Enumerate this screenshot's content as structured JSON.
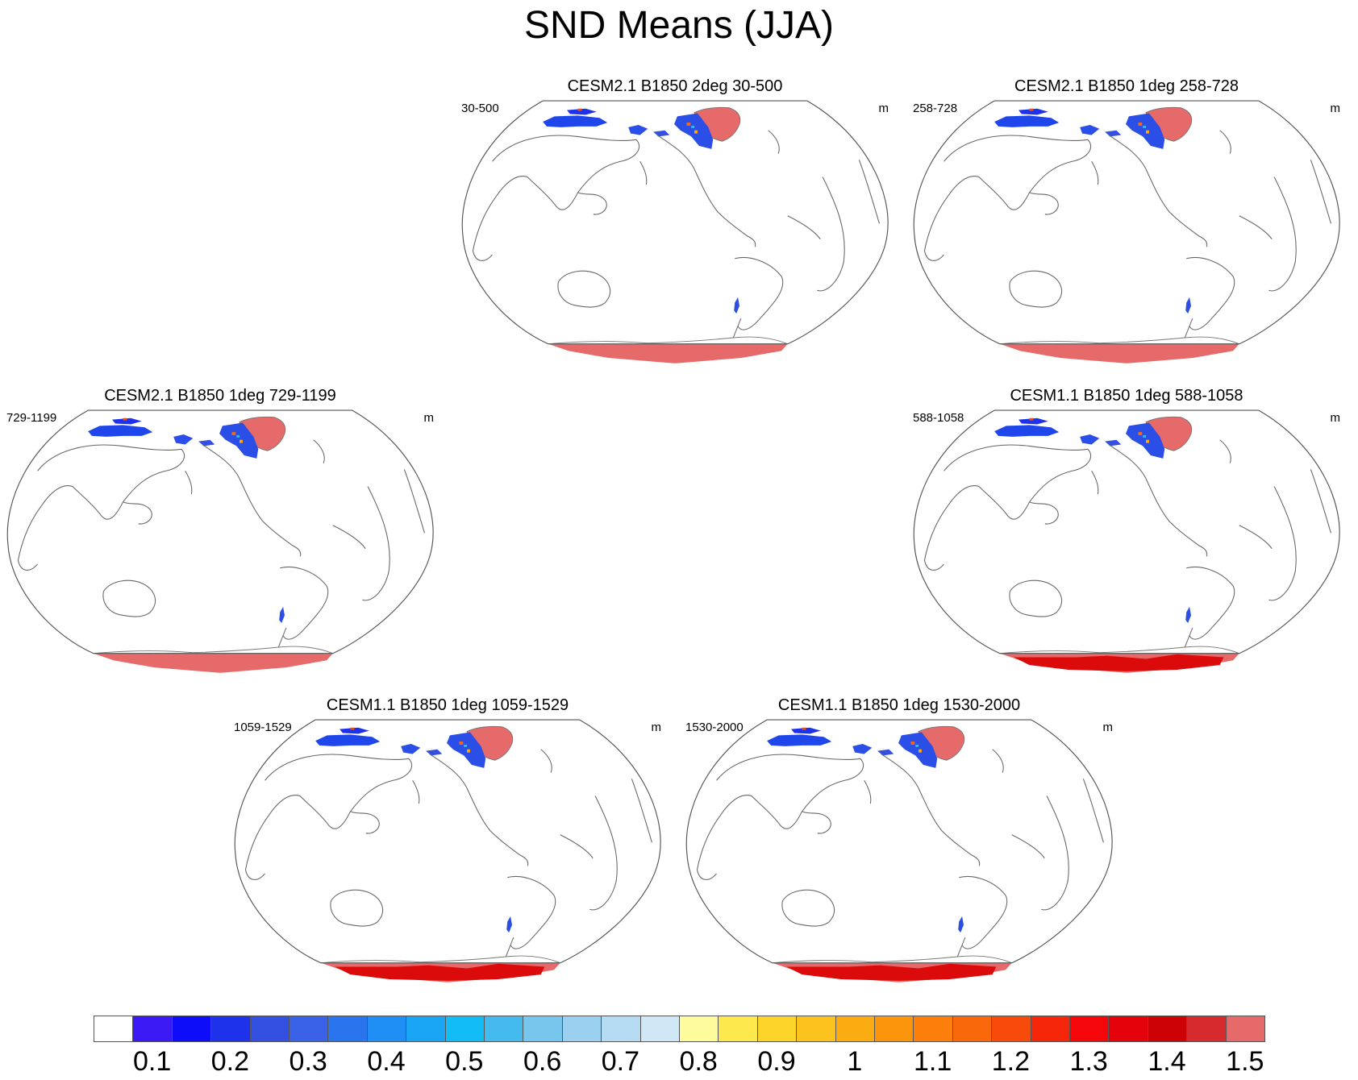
{
  "title": "SND Means (JJA)",
  "panels": [
    {
      "title": "CESM2.1 B1850 2deg 30-500",
      "left_string": "30-500",
      "units": "m",
      "antarctic_core": false
    },
    {
      "title": "CESM2.1 B1850 1deg 258-728",
      "left_string": "258-728",
      "units": "m",
      "antarctic_core": false
    },
    {
      "title": "CESM2.1 B1850 1deg 729-1199",
      "left_string": "729-1199",
      "units": "m",
      "antarctic_core": false
    },
    {
      "title": "CESM1.1 B1850 1deg 588-1058",
      "left_string": "588-1058",
      "units": "m",
      "antarctic_core": true
    },
    {
      "title": "CESM1.1 B1850 1deg 1059-1529",
      "left_string": "1059-1529",
      "units": "m",
      "antarctic_core": true
    },
    {
      "title": "CESM1.1 B1850 1deg 1530-2000",
      "left_string": "1530-2000",
      "units": "m",
      "antarctic_core": true
    }
  ],
  "colorbar": {
    "labels": [
      "0.1",
      "0.2",
      "0.3",
      "0.4",
      "0.5",
      "0.6",
      "0.7",
      "0.8",
      "0.9",
      "1",
      "1.1",
      "1.2",
      "1.3",
      "1.4",
      "1.5"
    ],
    "colors": [
      "#ffffff",
      "#3b19f5",
      "#0d0dfa",
      "#1e32ec",
      "#3450e0",
      "#3a62e8",
      "#2a74ee",
      "#1f8ef5",
      "#19a4f4",
      "#12bdf5",
      "#45baef",
      "#77c6ee",
      "#9bd0f0",
      "#b6dcf3",
      "#d0e8f6",
      "#fdfb9c",
      "#fde84d",
      "#fcd42a",
      "#fcc21d",
      "#fbac10",
      "#fb960c",
      "#fb7f0a",
      "#f9680a",
      "#f84a0a",
      "#f6260b",
      "#f4060b",
      "#e4030a",
      "#cc0205",
      "#d62a2e",
      "#e76a6a"
    ]
  },
  "chart_data": {
    "type": "map-panels",
    "variable": "SND",
    "season": "JJA",
    "units": "m",
    "levels": [
      0.1,
      0.2,
      0.3,
      0.4,
      0.5,
      0.6,
      0.7,
      0.8,
      0.9,
      1,
      1.1,
      1.2,
      1.3,
      1.4,
      1.5
    ],
    "projection": "Robinson, Pacific-centered",
    "panel_titles": [
      "CESM2.1 B1850 2deg 30-500",
      "CESM2.1 B1850 1deg 258-728",
      "CESM2.1 B1850 1deg 729-1199",
      "CESM1.1 B1850 1deg 588-1058",
      "CESM1.1 B1850 1deg 1059-1529",
      "CESM1.1 B1850 1deg 1530-2000"
    ]
  }
}
